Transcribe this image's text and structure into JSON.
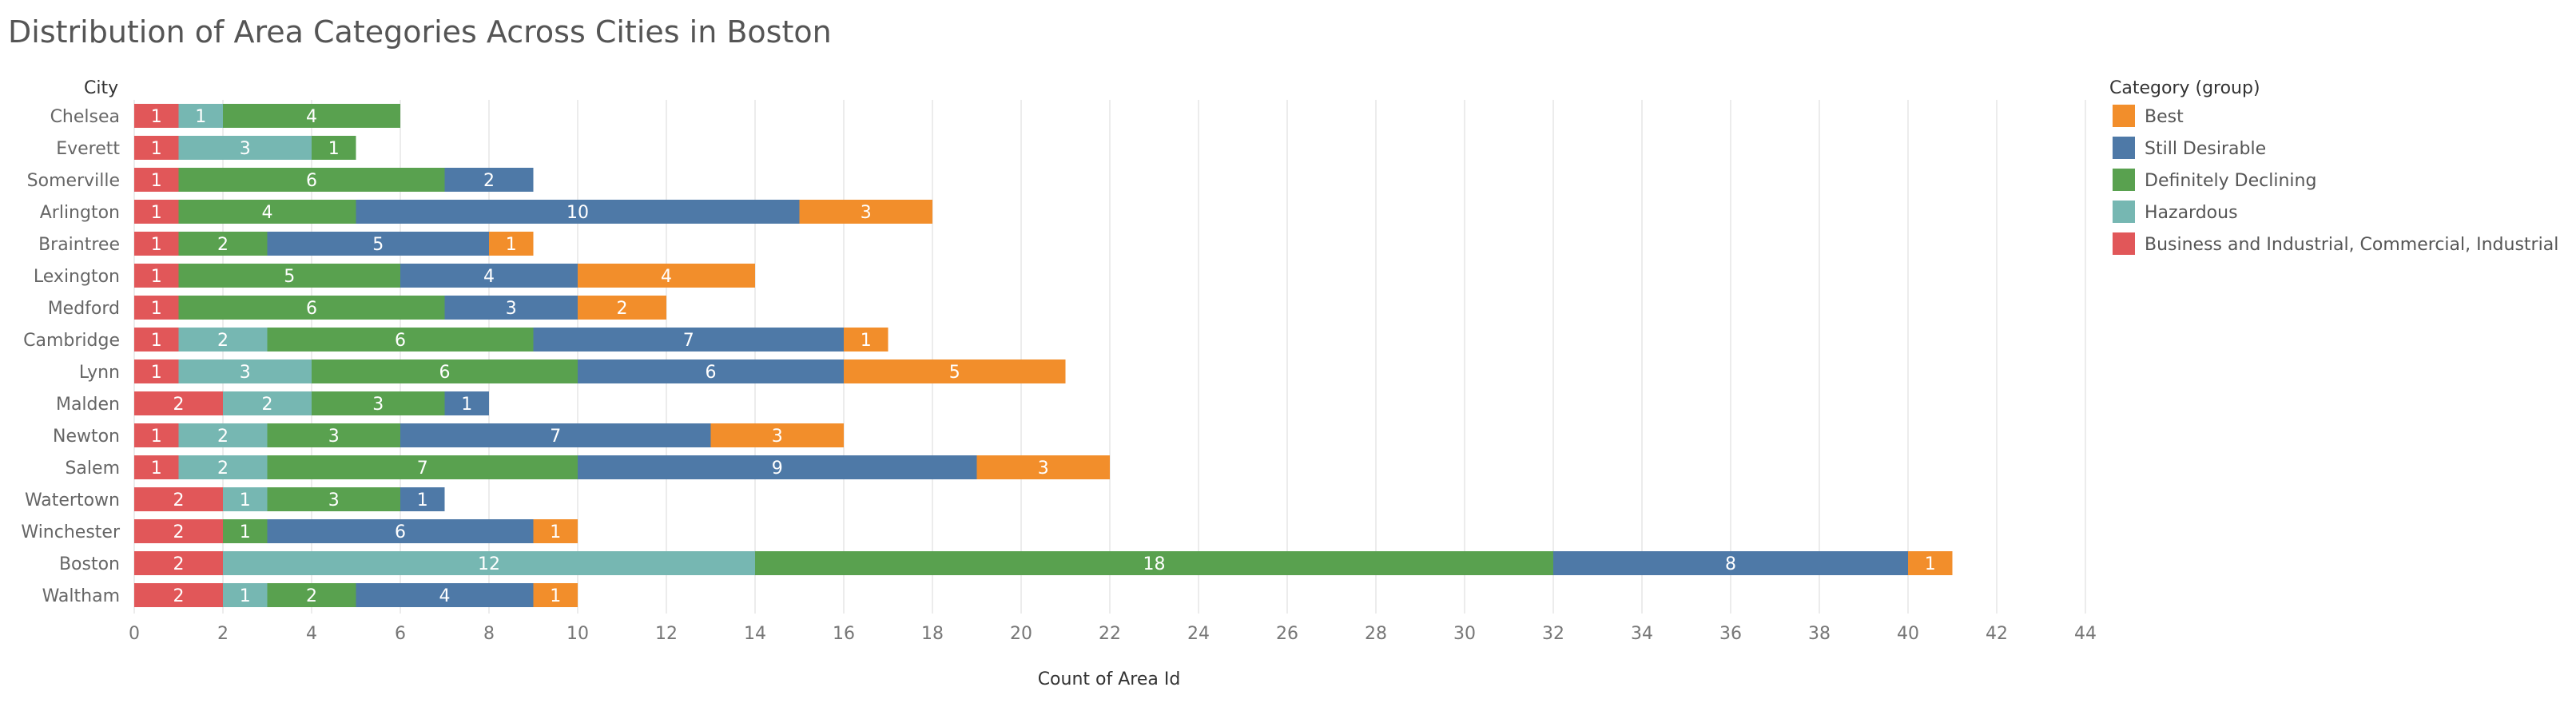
{
  "chart_data": {
    "type": "bar",
    "orientation": "horizontal",
    "stacked": true,
    "title": "Distribution of Area Categories Across Cities in Boston",
    "xlabel": "Count of Area Id",
    "ylabel": "City",
    "xlim": [
      0,
      44
    ],
    "x_ticks": [
      0,
      2,
      4,
      6,
      8,
      10,
      12,
      14,
      16,
      18,
      20,
      22,
      24,
      26,
      28,
      30,
      32,
      34,
      36,
      38,
      40,
      42,
      44
    ],
    "grid": true,
    "legend": {
      "title": "Category (group)",
      "placement": "right",
      "entries": [
        "Best",
        "Still Desirable",
        "Definitely Declining",
        "Hazardous",
        "Business and Industrial, Commercial, Industrial"
      ]
    },
    "categories": [
      "Chelsea",
      "Everett",
      "Somerville",
      "Arlington",
      "Braintree",
      "Lexington",
      "Medford",
      "Cambridge",
      "Lynn",
      "Malden",
      "Newton",
      "Salem",
      "Watertown",
      "Winchester",
      "Boston",
      "Waltham"
    ],
    "series": [
      {
        "name": "Business and Industrial, Commercial, Industrial",
        "color": "#e15759",
        "values": [
          1,
          1,
          1,
          1,
          1,
          1,
          1,
          1,
          1,
          2,
          1,
          1,
          2,
          2,
          2,
          2
        ]
      },
      {
        "name": "Hazardous",
        "color": "#76b7b2",
        "values": [
          1,
          3,
          0,
          0,
          0,
          0,
          0,
          2,
          3,
          2,
          2,
          2,
          1,
          0,
          12,
          1
        ]
      },
      {
        "name": "Definitely Declining",
        "color": "#59a14f",
        "values": [
          4,
          1,
          6,
          4,
          2,
          5,
          6,
          6,
          6,
          3,
          3,
          7,
          3,
          1,
          18,
          2
        ]
      },
      {
        "name": "Still Desirable",
        "color": "#4e79a7",
        "values": [
          0,
          0,
          2,
          10,
          5,
          4,
          3,
          7,
          6,
          1,
          7,
          9,
          1,
          6,
          8,
          4
        ]
      },
      {
        "name": "Best",
        "color": "#f28e2b",
        "values": [
          0,
          0,
          0,
          3,
          1,
          4,
          2,
          1,
          5,
          0,
          3,
          3,
          0,
          1,
          1,
          1
        ]
      }
    ]
  }
}
